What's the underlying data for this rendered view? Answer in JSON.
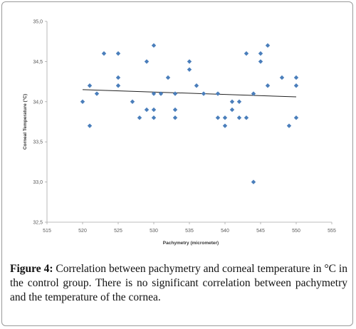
{
  "chart_data": {
    "type": "scatter",
    "xlabel": "Pachymetry (micrometer)",
    "ylabel": "Corneal Temperature (°C)",
    "xlim": [
      515,
      555
    ],
    "ylim": [
      32.5,
      35.0
    ],
    "x_ticks": [
      "515",
      "520",
      "525",
      "530",
      "535",
      "540",
      "545",
      "550",
      "555"
    ],
    "y_ticks": [
      "32,5",
      "33,0",
      "33,5",
      "34,0",
      "34,5",
      "35,0"
    ],
    "grid": false,
    "legend": "none",
    "marker_color": "#4a7ebb",
    "trendline": {
      "x": [
        520,
        550
      ],
      "y": [
        34.15,
        34.06
      ],
      "color": "#222222"
    },
    "series": [
      {
        "points": [
          [
            520,
            34.0
          ],
          [
            521,
            34.2
          ],
          [
            521,
            33.7
          ],
          [
            522,
            34.1
          ],
          [
            523,
            34.6
          ],
          [
            525,
            34.6
          ],
          [
            525,
            34.3
          ],
          [
            525,
            34.2
          ],
          [
            527,
            34.0
          ],
          [
            528,
            33.8
          ],
          [
            529,
            34.5
          ],
          [
            529,
            33.9
          ],
          [
            530,
            34.7
          ],
          [
            530,
            34.1
          ],
          [
            530,
            33.9
          ],
          [
            530,
            33.8
          ],
          [
            531,
            34.1
          ],
          [
            532,
            34.3
          ],
          [
            533,
            34.1
          ],
          [
            533,
            33.9
          ],
          [
            533,
            33.8
          ],
          [
            535,
            34.5
          ],
          [
            535,
            34.4
          ],
          [
            536,
            34.2
          ],
          [
            537,
            34.1
          ],
          [
            539,
            34.1
          ],
          [
            539,
            33.8
          ],
          [
            540,
            33.8
          ],
          [
            540,
            33.7
          ],
          [
            541,
            34.0
          ],
          [
            541,
            33.9
          ],
          [
            542,
            34.0
          ],
          [
            542,
            33.8
          ],
          [
            543,
            34.6
          ],
          [
            543,
            33.8
          ],
          [
            544,
            34.1
          ],
          [
            544,
            33.0
          ],
          [
            545,
            34.6
          ],
          [
            545,
            34.5
          ],
          [
            546,
            34.7
          ],
          [
            546,
            34.2
          ],
          [
            548,
            34.3
          ],
          [
            549,
            33.7
          ],
          [
            550,
            34.3
          ],
          [
            550,
            34.2
          ],
          [
            550,
            33.8
          ]
        ]
      }
    ]
  },
  "caption": {
    "label": "Figure 4:",
    "text": " Correlation between pachymetry and corneal temperature in °C in the control group. There is no significant correlation between pachymetry and the temperature of the cornea."
  }
}
